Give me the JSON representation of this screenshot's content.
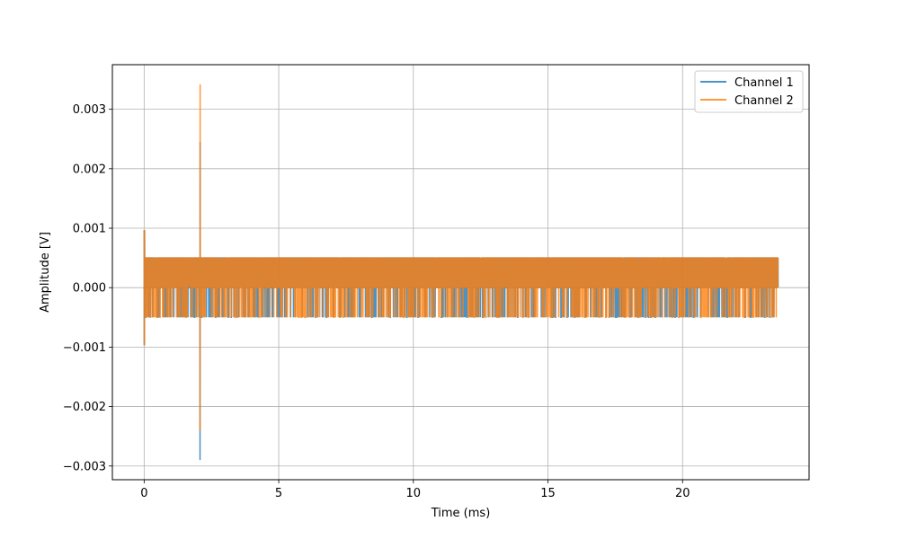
{
  "chart_data": {
    "type": "line",
    "title": "",
    "xlabel": "Time (ms)",
    "ylabel": "Amplitude [V]",
    "xlim": [
      -1.18,
      24.7
    ],
    "ylim": [
      -0.00323,
      0.00375
    ],
    "x_ticks": [
      0,
      5,
      10,
      15,
      20
    ],
    "x_tick_labels": [
      "0",
      "5",
      "10",
      "15",
      "20"
    ],
    "y_ticks": [
      -0.003,
      -0.002,
      -0.001,
      0.0,
      0.001,
      0.002,
      0.003
    ],
    "y_tick_labels": [
      "−0.003",
      "−0.002",
      "−0.001",
      "0.000",
      "0.001",
      "0.002",
      "0.003"
    ],
    "grid": true,
    "legend_position": "top-right",
    "signal": {
      "duration_ms": 23.55,
      "levels": [
        -0.0005,
        0.0,
        0.0005
      ],
      "initial_spike": {
        "t": 0.0,
        "max": 0.00097,
        "min": -0.00097
      },
      "burst_spike": {
        "t": 2.08
      }
    },
    "series": [
      {
        "name": "Channel 1",
        "color": "#1f77b4",
        "opacity": 0.8,
        "burst_max": 0.00245,
        "burst_min": -0.0029,
        "seed": 7
      },
      {
        "name": "Channel 2",
        "color": "#ff7f0e",
        "opacity": 0.8,
        "burst_max": 0.00342,
        "burst_min": -0.0024,
        "seed": 13
      }
    ]
  }
}
